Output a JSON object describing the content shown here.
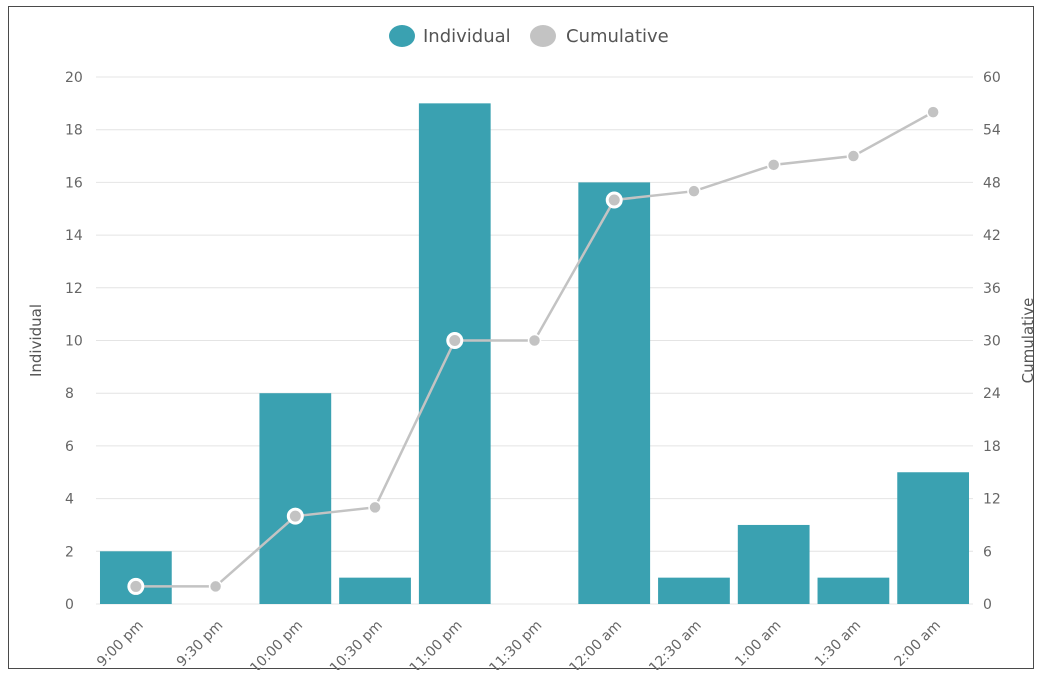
{
  "chart_data": {
    "type": "bar",
    "categories": [
      "9:00 pm",
      "9:30 pm",
      "10:00 pm",
      "10:30 pm",
      "11:00 pm",
      "11:30 pm",
      "12:00 am",
      "12:30 am",
      "1:00 am",
      "1:30 am",
      "2:00 am"
    ],
    "series": [
      {
        "name": "Individual",
        "type": "bar",
        "axis": "left",
        "color": "#3aa1b1",
        "values": [
          2,
          0,
          8,
          1,
          19,
          0,
          16,
          1,
          3,
          1,
          5
        ]
      },
      {
        "name": "Cumulative",
        "type": "line",
        "axis": "right",
        "color": "#c3c3c3",
        "values": [
          2,
          2,
          10,
          11,
          30,
          30,
          46,
          47,
          50,
          51,
          56
        ]
      }
    ],
    "y_left": {
      "label": "Individual",
      "ylim": [
        0,
        20
      ],
      "ticks": [
        "0",
        "2",
        "4",
        "6",
        "8",
        "10",
        "12",
        "14",
        "16",
        "18",
        "20"
      ]
    },
    "y_right": {
      "label": "Cumulative",
      "ylim": [
        0,
        60
      ],
      "ticks": [
        "0",
        "6",
        "12",
        "18",
        "24",
        "30",
        "36",
        "42",
        "48",
        "54",
        "60"
      ]
    },
    "grid": true,
    "legend": "top-center"
  }
}
